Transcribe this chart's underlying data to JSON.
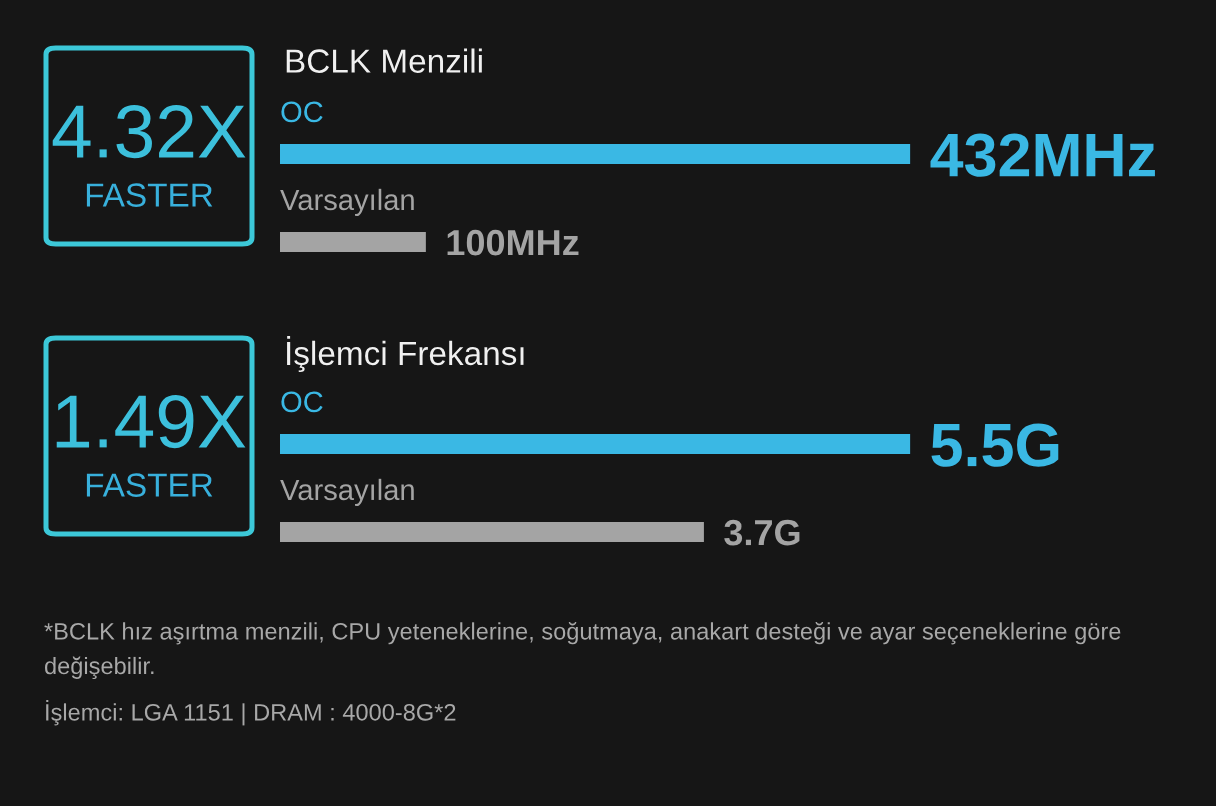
{
  "chart_data": [
    {
      "type": "bar",
      "orientation": "horizontal",
      "title": "BCLK Menzili",
      "categories": [
        "OC",
        "Varsayılan"
      ],
      "values": [
        432,
        100
      ],
      "colors": [
        "#3ab8e4",
        "#a4a4a4"
      ],
      "value_labels": [
        "432MHz",
        "100MHz"
      ],
      "tick_labels": "y",
      "annotations": [
        "4.32X",
        "FASTER"
      ]
    },
    {
      "type": "bar",
      "orientation": "horizontal",
      "title": "İşlemci Frekansı",
      "categories": [
        "OC",
        "Varsayılan"
      ],
      "values": [
        5.5,
        3.7
      ],
      "colors": [
        "#3ab8e4",
        "#a4a4a4"
      ],
      "value_labels": [
        "5.5G",
        "3.7G"
      ],
      "tick_labels": "y",
      "annotations": [
        "1.49X",
        "FASTER",
        "*BCLK hız aşırtma menzili, CPU yeteneklerine, soğutmaya, anakart desteği ve ayar seçeneklerine göre değişebilir.",
        "İşlemci: LGA 1151 | DRAM : 4000-8G*2"
      ]
    }
  ]
}
